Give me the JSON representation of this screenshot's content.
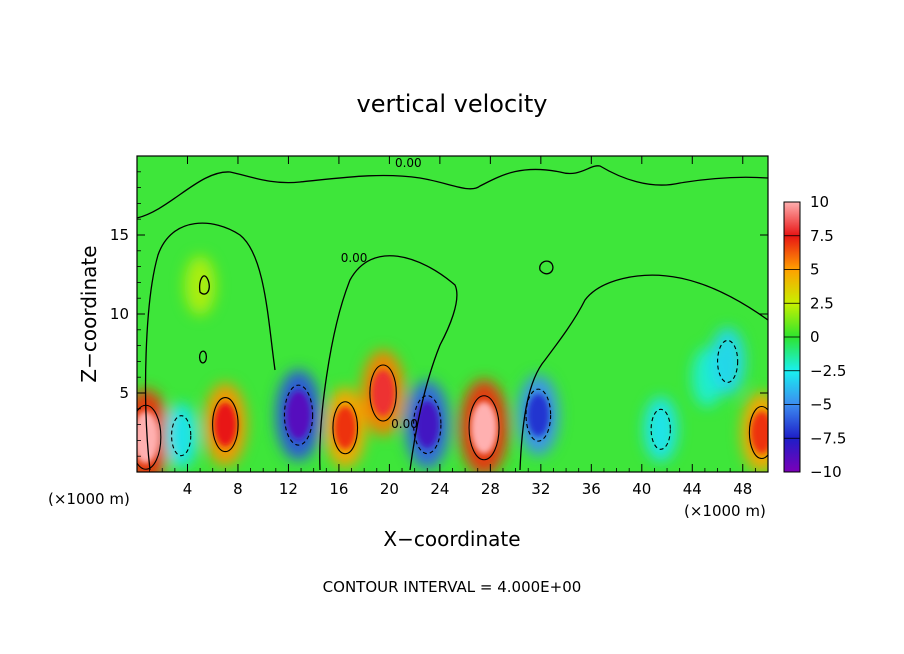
{
  "chart_data": {
    "type": "heatmap",
    "title": "vertical velocity",
    "xlabel": "X−coordinate",
    "ylabel": "Z−coordinate",
    "x_unit_left": "(×1000 m)",
    "x_unit_right": "(×1000 m)",
    "xlim": [
      0,
      50
    ],
    "ylim": [
      0,
      20
    ],
    "xticks": [
      4,
      8,
      12,
      16,
      20,
      24,
      28,
      32,
      36,
      40,
      44,
      48
    ],
    "yticks": [
      5,
      10,
      15
    ],
    "colorbar": {
      "min": -10,
      "max": 10,
      "ticks": [
        "10",
        "7.5",
        "5",
        "2.5",
        "0",
        "−2.5",
        "−5",
        "−7.5",
        "−10"
      ],
      "tick_values": [
        10,
        7.5,
        5,
        2.5,
        0,
        -2.5,
        -5,
        -7.5,
        -10
      ]
    },
    "contour_labels": [
      {
        "text": "0.00",
        "x": 21.5,
        "z": 19.3
      },
      {
        "text": "0.00",
        "x": 17.2,
        "z": 13.3
      },
      {
        "text": "0.00",
        "x": 21.2,
        "z": 2.8
      }
    ],
    "features": [
      {
        "x": 0.7,
        "z": 2.2,
        "value": 10
      },
      {
        "x": 3.5,
        "z": 2.3,
        "value": -4
      },
      {
        "x": 7.0,
        "z": 3.0,
        "value": 7.5
      },
      {
        "x": 12.8,
        "z": 3.6,
        "value": -9
      },
      {
        "x": 16.5,
        "z": 2.8,
        "value": 7
      },
      {
        "x": 19.5,
        "z": 5.0,
        "value": 8
      },
      {
        "x": 23.0,
        "z": 3.0,
        "value": -8.5
      },
      {
        "x": 27.5,
        "z": 2.8,
        "value": 10
      },
      {
        "x": 31.8,
        "z": 3.6,
        "value": -7
      },
      {
        "x": 41.5,
        "z": 2.7,
        "value": -4
      },
      {
        "x": 45.2,
        "z": 6.0,
        "value": -3
      },
      {
        "x": 46.8,
        "z": 7.0,
        "value": -4.5
      },
      {
        "x": 49.5,
        "z": 2.5,
        "value": 7
      },
      {
        "x": 5.0,
        "z": 11.8,
        "value": 3
      }
    ],
    "note": "CONTOUR INTERVAL = 4.000E+00"
  }
}
